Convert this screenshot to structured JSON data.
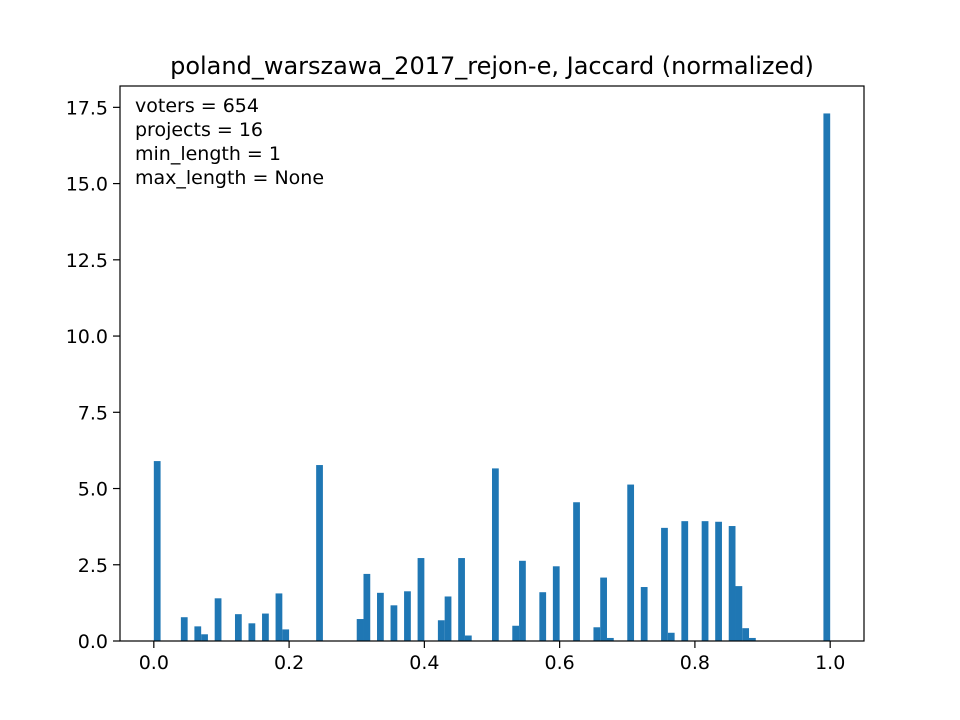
{
  "chart_data": {
    "type": "bar",
    "title": "poland_warszawa_2017_rejon-e, Jaccard (normalized)",
    "xlabel": "",
    "ylabel": "",
    "xlim": [
      -0.05,
      1.05
    ],
    "ylim": [
      0,
      18.2
    ],
    "bar_width": 0.01,
    "bar_color": "#1f77b4",
    "grid": false,
    "xticks": [
      "0.0",
      "0.2",
      "0.4",
      "0.6",
      "0.8",
      "1.0"
    ],
    "yticks": [
      "0.0",
      "2.5",
      "5.0",
      "7.5",
      "10.0",
      "12.5",
      "15.0",
      "17.5"
    ],
    "annotation": [
      "voters = 654",
      "projects = 16",
      "min_length = 1",
      "max_length = None"
    ],
    "x": [
      0.005,
      0.045,
      0.065,
      0.075,
      0.095,
      0.125,
      0.145,
      0.165,
      0.185,
      0.195,
      0.245,
      0.305,
      0.315,
      0.335,
      0.355,
      0.375,
      0.395,
      0.425,
      0.435,
      0.455,
      0.465,
      0.505,
      0.535,
      0.545,
      0.575,
      0.595,
      0.625,
      0.655,
      0.665,
      0.675,
      0.705,
      0.725,
      0.755,
      0.765,
      0.785,
      0.815,
      0.835,
      0.855,
      0.865,
      0.875,
      0.885,
      0.995
    ],
    "values": [
      5.9,
      0.78,
      0.48,
      0.22,
      1.4,
      0.88,
      0.58,
      0.9,
      1.56,
      0.38,
      5.77,
      0.72,
      2.2,
      1.58,
      1.17,
      1.63,
      2.72,
      0.68,
      1.46,
      2.72,
      0.18,
      5.66,
      0.5,
      2.63,
      1.6,
      2.45,
      4.55,
      0.45,
      2.08,
      0.1,
      5.13,
      1.77,
      3.71,
      0.27,
      3.93,
      3.93,
      3.91,
      3.77,
      1.8,
      0.42,
      0.1,
      17.3
    ]
  }
}
